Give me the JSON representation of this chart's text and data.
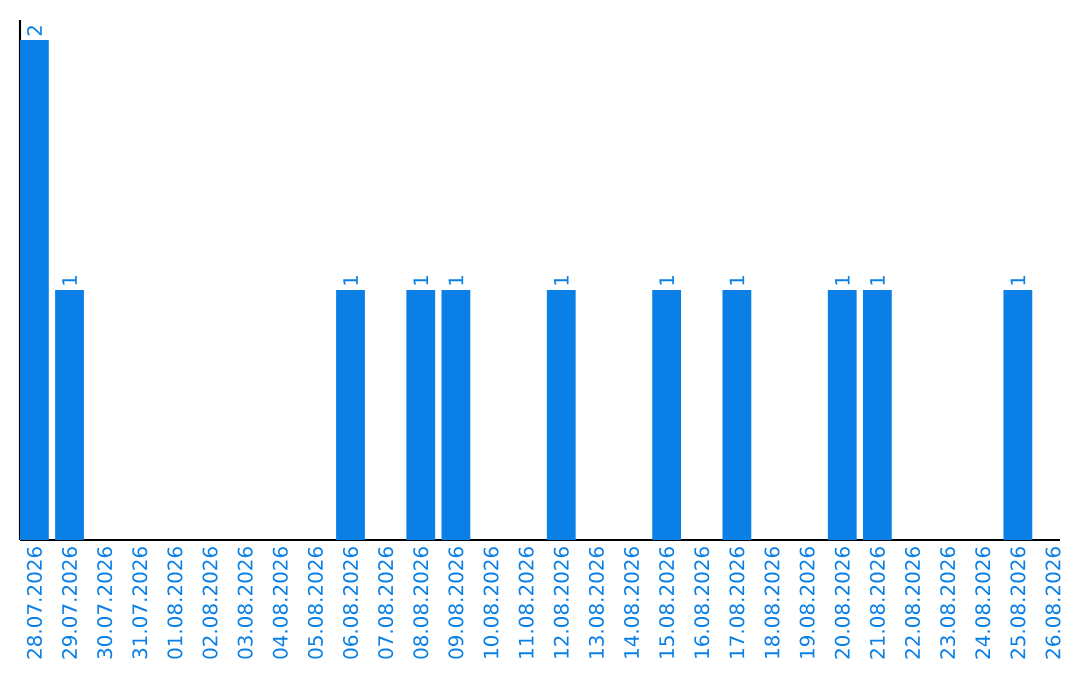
{
  "chart_data": {
    "type": "bar",
    "categories": [
      "28.07.2026",
      "29.07.2026",
      "30.07.2026",
      "31.07.2026",
      "01.08.2026",
      "02.08.2026",
      "03.08.2026",
      "04.08.2026",
      "05.08.2026",
      "06.08.2026",
      "07.08.2026",
      "08.08.2026",
      "09.08.2026",
      "10.08.2026",
      "11.08.2026",
      "12.08.2026",
      "13.08.2026",
      "14.08.2026",
      "15.08.2026",
      "16.08.2026",
      "17.08.2026",
      "18.08.2026",
      "19.08.2026",
      "20.08.2026",
      "21.08.2026",
      "22.08.2026",
      "23.08.2026",
      "24.08.2026",
      "25.08.2026",
      "26.08.2026"
    ],
    "values": [
      2,
      1,
      0,
      0,
      0,
      0,
      0,
      0,
      0,
      1,
      0,
      1,
      1,
      0,
      0,
      1,
      0,
      0,
      1,
      0,
      1,
      0,
      0,
      1,
      1,
      0,
      0,
      0,
      1,
      0
    ],
    "value_labels": [
      "2",
      "1",
      null,
      null,
      null,
      null,
      null,
      null,
      null,
      "1",
      null,
      "1",
      "1",
      null,
      null,
      "1",
      null,
      null,
      "1",
      null,
      "1",
      null,
      null,
      "1",
      "1",
      null,
      null,
      null,
      "1",
      null
    ],
    "color": "#0a80e6",
    "tick_labels": "x"
  }
}
